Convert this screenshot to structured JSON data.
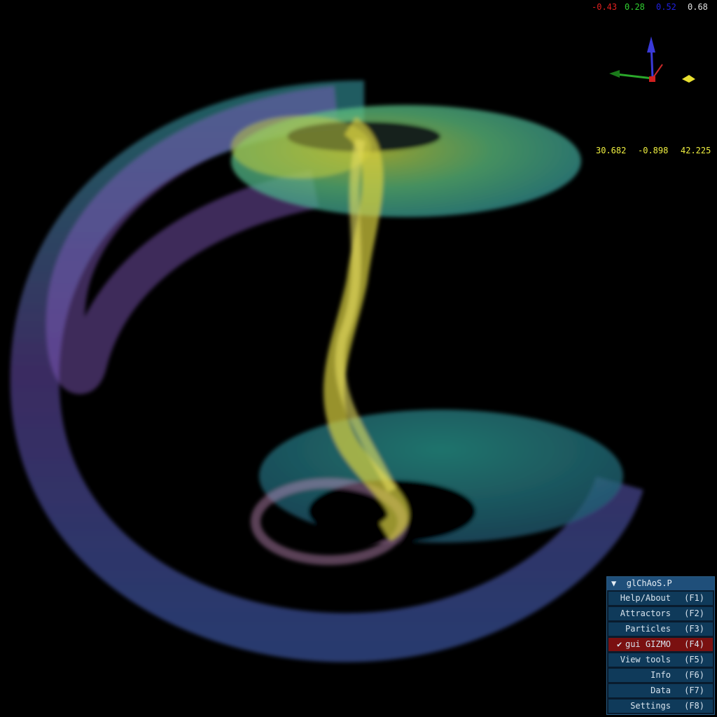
{
  "quaternion": [
    "-0.43",
    "0.28",
    "0.52",
    "0.68"
  ],
  "position": [
    "30.682",
    "-0.898",
    "42.225"
  ],
  "menu": {
    "title": "glChAoS.P",
    "items": [
      {
        "label": "Help/About",
        "key": "(F1)"
      },
      {
        "label": "Attractors",
        "key": "(F2)"
      },
      {
        "label": "Particles",
        "key": "(F3)"
      },
      {
        "label": "gui GIZMO",
        "key": "(F4)",
        "selected": true
      },
      {
        "label": "View tools",
        "key": "(F5)"
      },
      {
        "label": "Info",
        "key": "(F6)"
      },
      {
        "label": "Data",
        "key": "(F7)"
      },
      {
        "label": "Settings",
        "key": "(F8)"
      }
    ]
  }
}
